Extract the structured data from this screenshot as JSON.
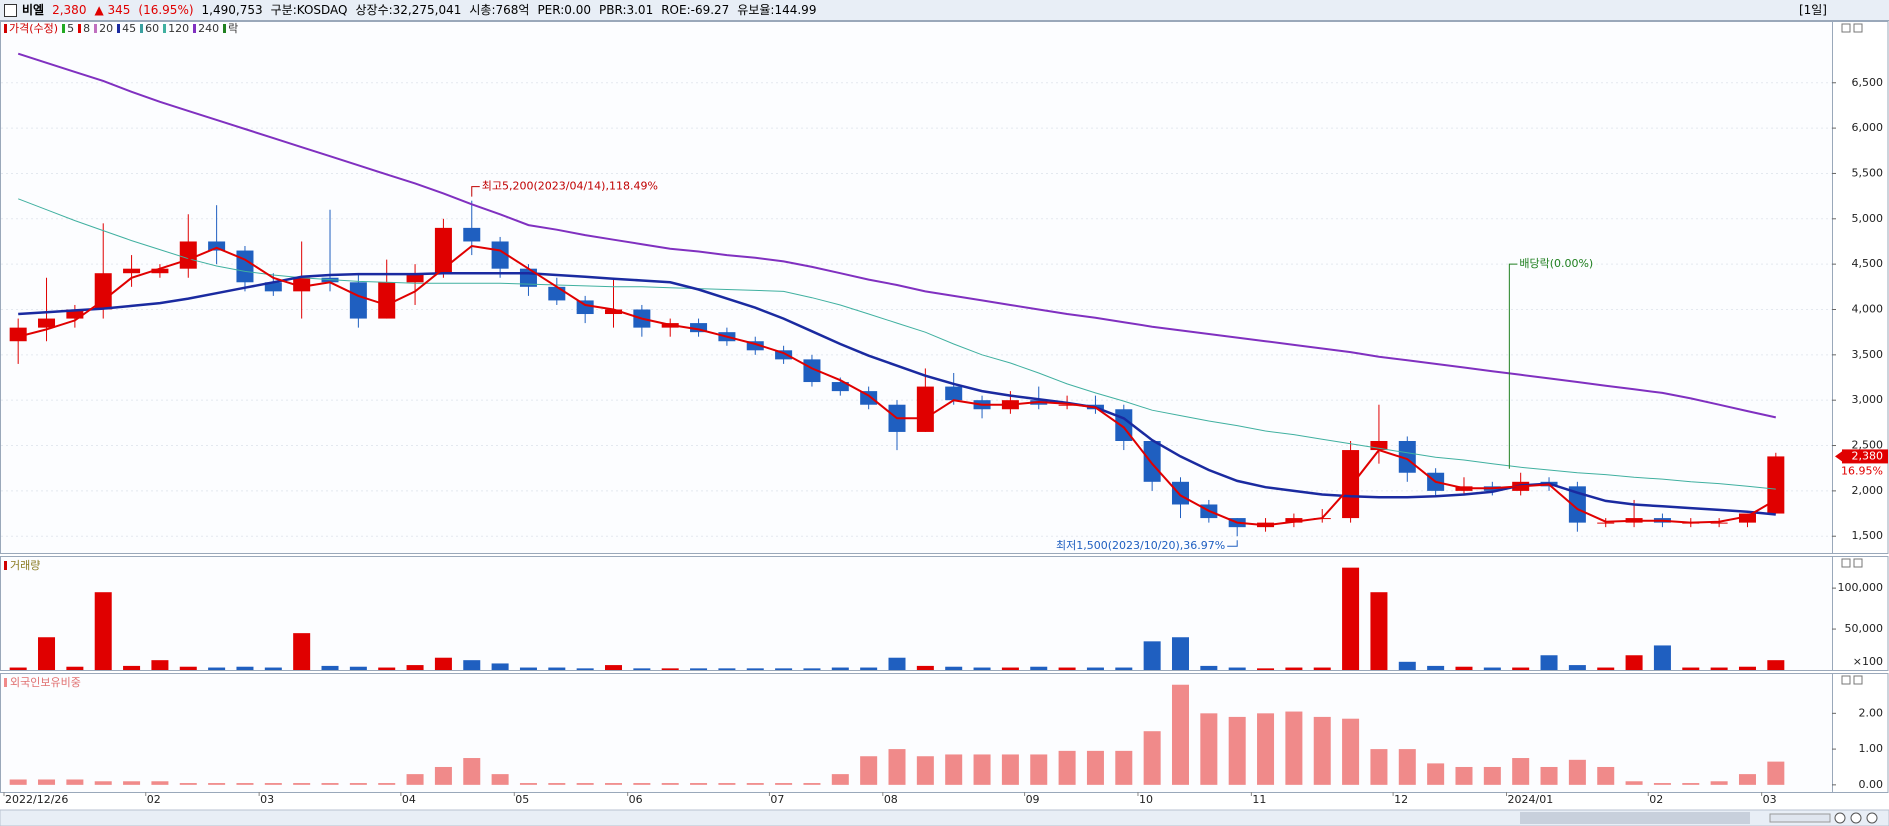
{
  "header": {
    "items": [
      {
        "text": "비엘",
        "color": "#000000"
      },
      {
        "text": "2,380",
        "color": "#e00000"
      },
      {
        "text": "▲ 345",
        "color": "#e00000"
      },
      {
        "text": "(16.95%)",
        "color": "#e00000"
      },
      {
        "text": "1,490,753",
        "color": "#000000"
      },
      {
        "text": "구분:KOSDAQ",
        "color": "#000000"
      },
      {
        "text": "상장수:32,275,041",
        "color": "#000000"
      },
      {
        "text": "시총:768억",
        "color": "#000000"
      },
      {
        "text": "PER:0.00",
        "color": "#000000"
      },
      {
        "text": "PBR:3.01",
        "color": "#000000"
      },
      {
        "text": "ROE:-69.27",
        "color": "#000000"
      },
      {
        "text": "유보율:144.99",
        "color": "#000000"
      }
    ],
    "period": "[1일]"
  },
  "chart_data": [
    {
      "type": "candlestick",
      "legend": [
        {
          "name": "가격(수정)",
          "color": "#d00000"
        },
        {
          "name": "5",
          "color": "#22aa22"
        },
        {
          "name": "8",
          "color": "#e00000"
        },
        {
          "name": "20",
          "color": "#c070c0"
        },
        {
          "name": "45",
          "color": "#1a2aa0"
        },
        {
          "name": "60",
          "color": "#3aa0a0"
        },
        {
          "name": "120",
          "color": "#40b0a0"
        },
        {
          "name": "240",
          "color": "#8030c0"
        },
        {
          "name": "락",
          "color": "#208020"
        }
      ],
      "categories": [
        "2022/12/26",
        null,
        null,
        null,
        null,
        "02",
        null,
        null,
        null,
        "03",
        null,
        null,
        null,
        null,
        "04",
        null,
        null,
        null,
        "05",
        null,
        null,
        null,
        "06",
        null,
        null,
        null,
        null,
        "07",
        null,
        null,
        null,
        "08",
        null,
        null,
        null,
        null,
        "09",
        null,
        null,
        null,
        "10",
        null,
        null,
        null,
        "11",
        null,
        null,
        null,
        null,
        "12",
        null,
        null,
        null,
        "2024/01",
        null,
        null,
        null,
        null,
        "02",
        null,
        null,
        null,
        "03"
      ],
      "open": [
        3650,
        3800,
        3900,
        4000,
        4400,
        4400,
        4450,
        4750,
        4650,
        4300,
        4200,
        4350,
        4300,
        3900,
        4300,
        4400,
        4900,
        4750,
        4450,
        4250,
        4100,
        3950,
        4000,
        3800,
        3850,
        3750,
        3650,
        3550,
        3450,
        3200,
        3100,
        2950,
        2650,
        3150,
        3000,
        2900,
        3000,
        2950,
        2950,
        2900,
        2550,
        2100,
        1850,
        1700,
        1600,
        1650,
        1700,
        1700,
        2450,
        2550,
        2200,
        2000,
        2050,
        2000,
        2100,
        2050,
        1650,
        1650,
        1700,
        1650,
        1650,
        1650,
        1750
      ],
      "high": [
        3900,
        4350,
        4050,
        4950,
        4600,
        4500,
        5050,
        5150,
        4700,
        4400,
        4750,
        5100,
        4400,
        4550,
        4500,
        5000,
        5200,
        4800,
        4500,
        4350,
        4150,
        4350,
        4050,
        3900,
        3900,
        3800,
        3700,
        3600,
        3500,
        3250,
        3150,
        3000,
        3350,
        3300,
        3050,
        3100,
        3150,
        3050,
        3050,
        2950,
        2550,
        2150,
        1900,
        1700,
        1700,
        1750,
        1800,
        2550,
        2950,
        2600,
        2250,
        2150,
        2100,
        2200,
        2150,
        2100,
        1700,
        1900,
        1750,
        1700,
        1700,
        1750,
        2420
      ],
      "low": [
        3400,
        3650,
        3800,
        3900,
        4250,
        4350,
        4350,
        4500,
        4200,
        4150,
        3900,
        4200,
        3800,
        3900,
        4050,
        4350,
        4600,
        4350,
        4150,
        4050,
        3850,
        3800,
        3700,
        3700,
        3700,
        3600,
        3500,
        3400,
        3150,
        3050,
        2900,
        2450,
        2650,
        2950,
        2800,
        2850,
        2900,
        2900,
        2850,
        2450,
        2000,
        1700,
        1650,
        1500,
        1550,
        1600,
        1650,
        1650,
        2300,
        2100,
        1950,
        1950,
        1950,
        1950,
        2000,
        1550,
        1600,
        1600,
        1600,
        1600,
        1600,
        1600,
        1750
      ],
      "close": [
        3800,
        3900,
        4000,
        4400,
        4450,
        4450,
        4750,
        4650,
        4300,
        4200,
        4350,
        4300,
        3900,
        4300,
        4400,
        4900,
        4750,
        4450,
        4250,
        4100,
        3950,
        4000,
        3800,
        3850,
        3750,
        3650,
        3550,
        3450,
        3200,
        3100,
        2950,
        2650,
        3150,
        3000,
        2900,
        3000,
        2950,
        2950,
        2900,
        2550,
        2100,
        1850,
        1700,
        1600,
        1650,
        1700,
        1700,
        2450,
        2550,
        2200,
        2000,
        2050,
        2000,
        2100,
        2050,
        1650,
        1650,
        1700,
        1650,
        1650,
        1650,
        1750,
        2380
      ],
      "up_color": "#e00000",
      "down_color": "#1f5fc0",
      "series": [
        {
          "name": "240",
          "color": "#8030c0",
          "width": 2,
          "values": [
            6820,
            6720,
            6620,
            6520,
            6400,
            6290,
            6190,
            6090,
            5990,
            5890,
            5790,
            5690,
            5590,
            5490,
            5390,
            5280,
            5160,
            5050,
            4930,
            4880,
            4820,
            4770,
            4720,
            4670,
            4640,
            4600,
            4570,
            4530,
            4470,
            4400,
            4330,
            4270,
            4200,
            4150,
            4100,
            4050,
            4000,
            3950,
            3910,
            3860,
            3810,
            3770,
            3730,
            3690,
            3650,
            3610,
            3570,
            3530,
            3480,
            3440,
            3400,
            3360,
            3320,
            3280,
            3240,
            3200,
            3160,
            3120,
            3080,
            3020,
            2950,
            2880,
            2810
          ]
        },
        {
          "name": "120",
          "color": "#40b0a0",
          "width": 1,
          "values": [
            5220,
            5100,
            4980,
            4870,
            4760,
            4660,
            4560,
            4480,
            4420,
            4380,
            4350,
            4330,
            4310,
            4300,
            4290,
            4290,
            4290,
            4290,
            4280,
            4270,
            4260,
            4250,
            4250,
            4240,
            4230,
            4220,
            4210,
            4200,
            4130,
            4050,
            3950,
            3850,
            3750,
            3620,
            3500,
            3410,
            3300,
            3180,
            3080,
            2990,
            2890,
            2830,
            2770,
            2720,
            2660,
            2620,
            2570,
            2520,
            2470,
            2420,
            2370,
            2340,
            2300,
            2260,
            2230,
            2200,
            2180,
            2150,
            2130,
            2100,
            2080,
            2050,
            2020
          ]
        },
        {
          "name": "45",
          "color": "#1a2aa0",
          "width": 2.5,
          "values": [
            3950,
            3970,
            3990,
            4010,
            4040,
            4070,
            4120,
            4180,
            4240,
            4300,
            4360,
            4380,
            4390,
            4390,
            4390,
            4400,
            4400,
            4400,
            4400,
            4380,
            4360,
            4340,
            4320,
            4300,
            4220,
            4120,
            4020,
            3900,
            3760,
            3620,
            3490,
            3380,
            3270,
            3180,
            3100,
            3050,
            3010,
            2970,
            2920,
            2800,
            2560,
            2380,
            2230,
            2110,
            2040,
            2000,
            1960,
            1940,
            1930,
            1930,
            1940,
            1960,
            1990,
            2060,
            2080,
            1980,
            1890,
            1850,
            1830,
            1810,
            1790,
            1770,
            1740
          ]
        },
        {
          "name": "8",
          "color": "#e00000",
          "width": 2,
          "values": [
            3700,
            3780,
            3880,
            4100,
            4350,
            4450,
            4550,
            4680,
            4550,
            4350,
            4250,
            4300,
            4150,
            4050,
            4200,
            4450,
            4700,
            4650,
            4450,
            4250,
            4050,
            4000,
            3900,
            3830,
            3780,
            3700,
            3620,
            3520,
            3350,
            3220,
            3050,
            2800,
            2800,
            3000,
            2950,
            2950,
            2980,
            2960,
            2920,
            2700,
            2300,
            1950,
            1780,
            1650,
            1620,
            1660,
            1700,
            2050,
            2450,
            2350,
            2100,
            2030,
            2030,
            2050,
            2070,
            1800,
            1660,
            1670,
            1670,
            1650,
            1660,
            1720,
            1900
          ]
        }
      ],
      "annotations": [
        "최고5,200(2023/04/14),118.49%",
        "최저1,500(2023/10/20),36.97%",
        "배당락(0.00%)"
      ],
      "last_price_label": "2,380",
      "last_change_label": "16.95%",
      "ylim": [
        1315,
        7170
      ],
      "yticks": [
        {
          "value": 1500,
          "label": "1,500"
        },
        {
          "value": 2000,
          "label": "2,000"
        },
        {
          "value": 2500,
          "label": "2,500"
        },
        {
          "value": 3000,
          "label": "3,000"
        },
        {
          "value": 3500,
          "label": "3,500"
        },
        {
          "value": 4000,
          "label": "4,000"
        },
        {
          "value": 4500,
          "label": "4,500"
        },
        {
          "value": 5000,
          "label": "5,000"
        },
        {
          "value": 5500,
          "label": "5,500"
        },
        {
          "value": 6000,
          "label": "6,000"
        },
        {
          "value": 6500,
          "label": "6,500"
        }
      ],
      "grid": true
    },
    {
      "type": "bar",
      "title": "거래량",
      "unit_label": "×100",
      "values": [
        3000,
        40000,
        4000,
        95000,
        5000,
        12000,
        4000,
        3000,
        4000,
        3000,
        45000,
        5000,
        4000,
        3000,
        6000,
        15000,
        12000,
        8000,
        3000,
        3000,
        2000,
        6000,
        2000,
        2000,
        2000,
        2000,
        2000,
        2000,
        2000,
        3000,
        3000,
        15000,
        5000,
        4000,
        3000,
        3000,
        4000,
        3000,
        3000,
        3000,
        35000,
        40000,
        5000,
        3000,
        2000,
        3000,
        3000,
        125000,
        95000,
        10000,
        5000,
        4000,
        3000,
        3000,
        18000,
        6000,
        3000,
        18000,
        30000,
        3000,
        3000,
        4000,
        12000
      ],
      "ylim": [
        0,
        138000
      ],
      "yticks": [
        {
          "value": 50000,
          "label": "50,000"
        },
        {
          "value": 100000,
          "label": "100,000"
        }
      ]
    },
    {
      "type": "bar",
      "title": "외국인보유비중",
      "color": "#f08a8a",
      "values": [
        0.15,
        0.15,
        0.15,
        0.1,
        0.1,
        0.1,
        0.05,
        0.05,
        0.05,
        0.05,
        0.05,
        0.05,
        0.05,
        0.05,
        0.3,
        0.5,
        0.75,
        0.3,
        0.05,
        0.05,
        0.05,
        0.05,
        0.05,
        0.05,
        0.05,
        0.05,
        0.05,
        0.05,
        0.05,
        0.3,
        0.8,
        1.0,
        0.8,
        0.85,
        0.85,
        0.85,
        0.85,
        0.95,
        0.95,
        0.95,
        1.5,
        2.8,
        2.0,
        1.9,
        2.0,
        2.05,
        1.9,
        1.85,
        1.0,
        1.0,
        0.6,
        0.5,
        0.5,
        0.75,
        0.5,
        0.7,
        0.5,
        0.1,
        0.05,
        0.05,
        0.1,
        0.3,
        0.65
      ],
      "ylim": [
        -0.2,
        3.1
      ],
      "yticks": [
        {
          "value": 0,
          "label": "0.00"
        },
        {
          "value": 1,
          "label": "1.00"
        },
        {
          "value": 2,
          "label": "2.00"
        }
      ]
    }
  ]
}
